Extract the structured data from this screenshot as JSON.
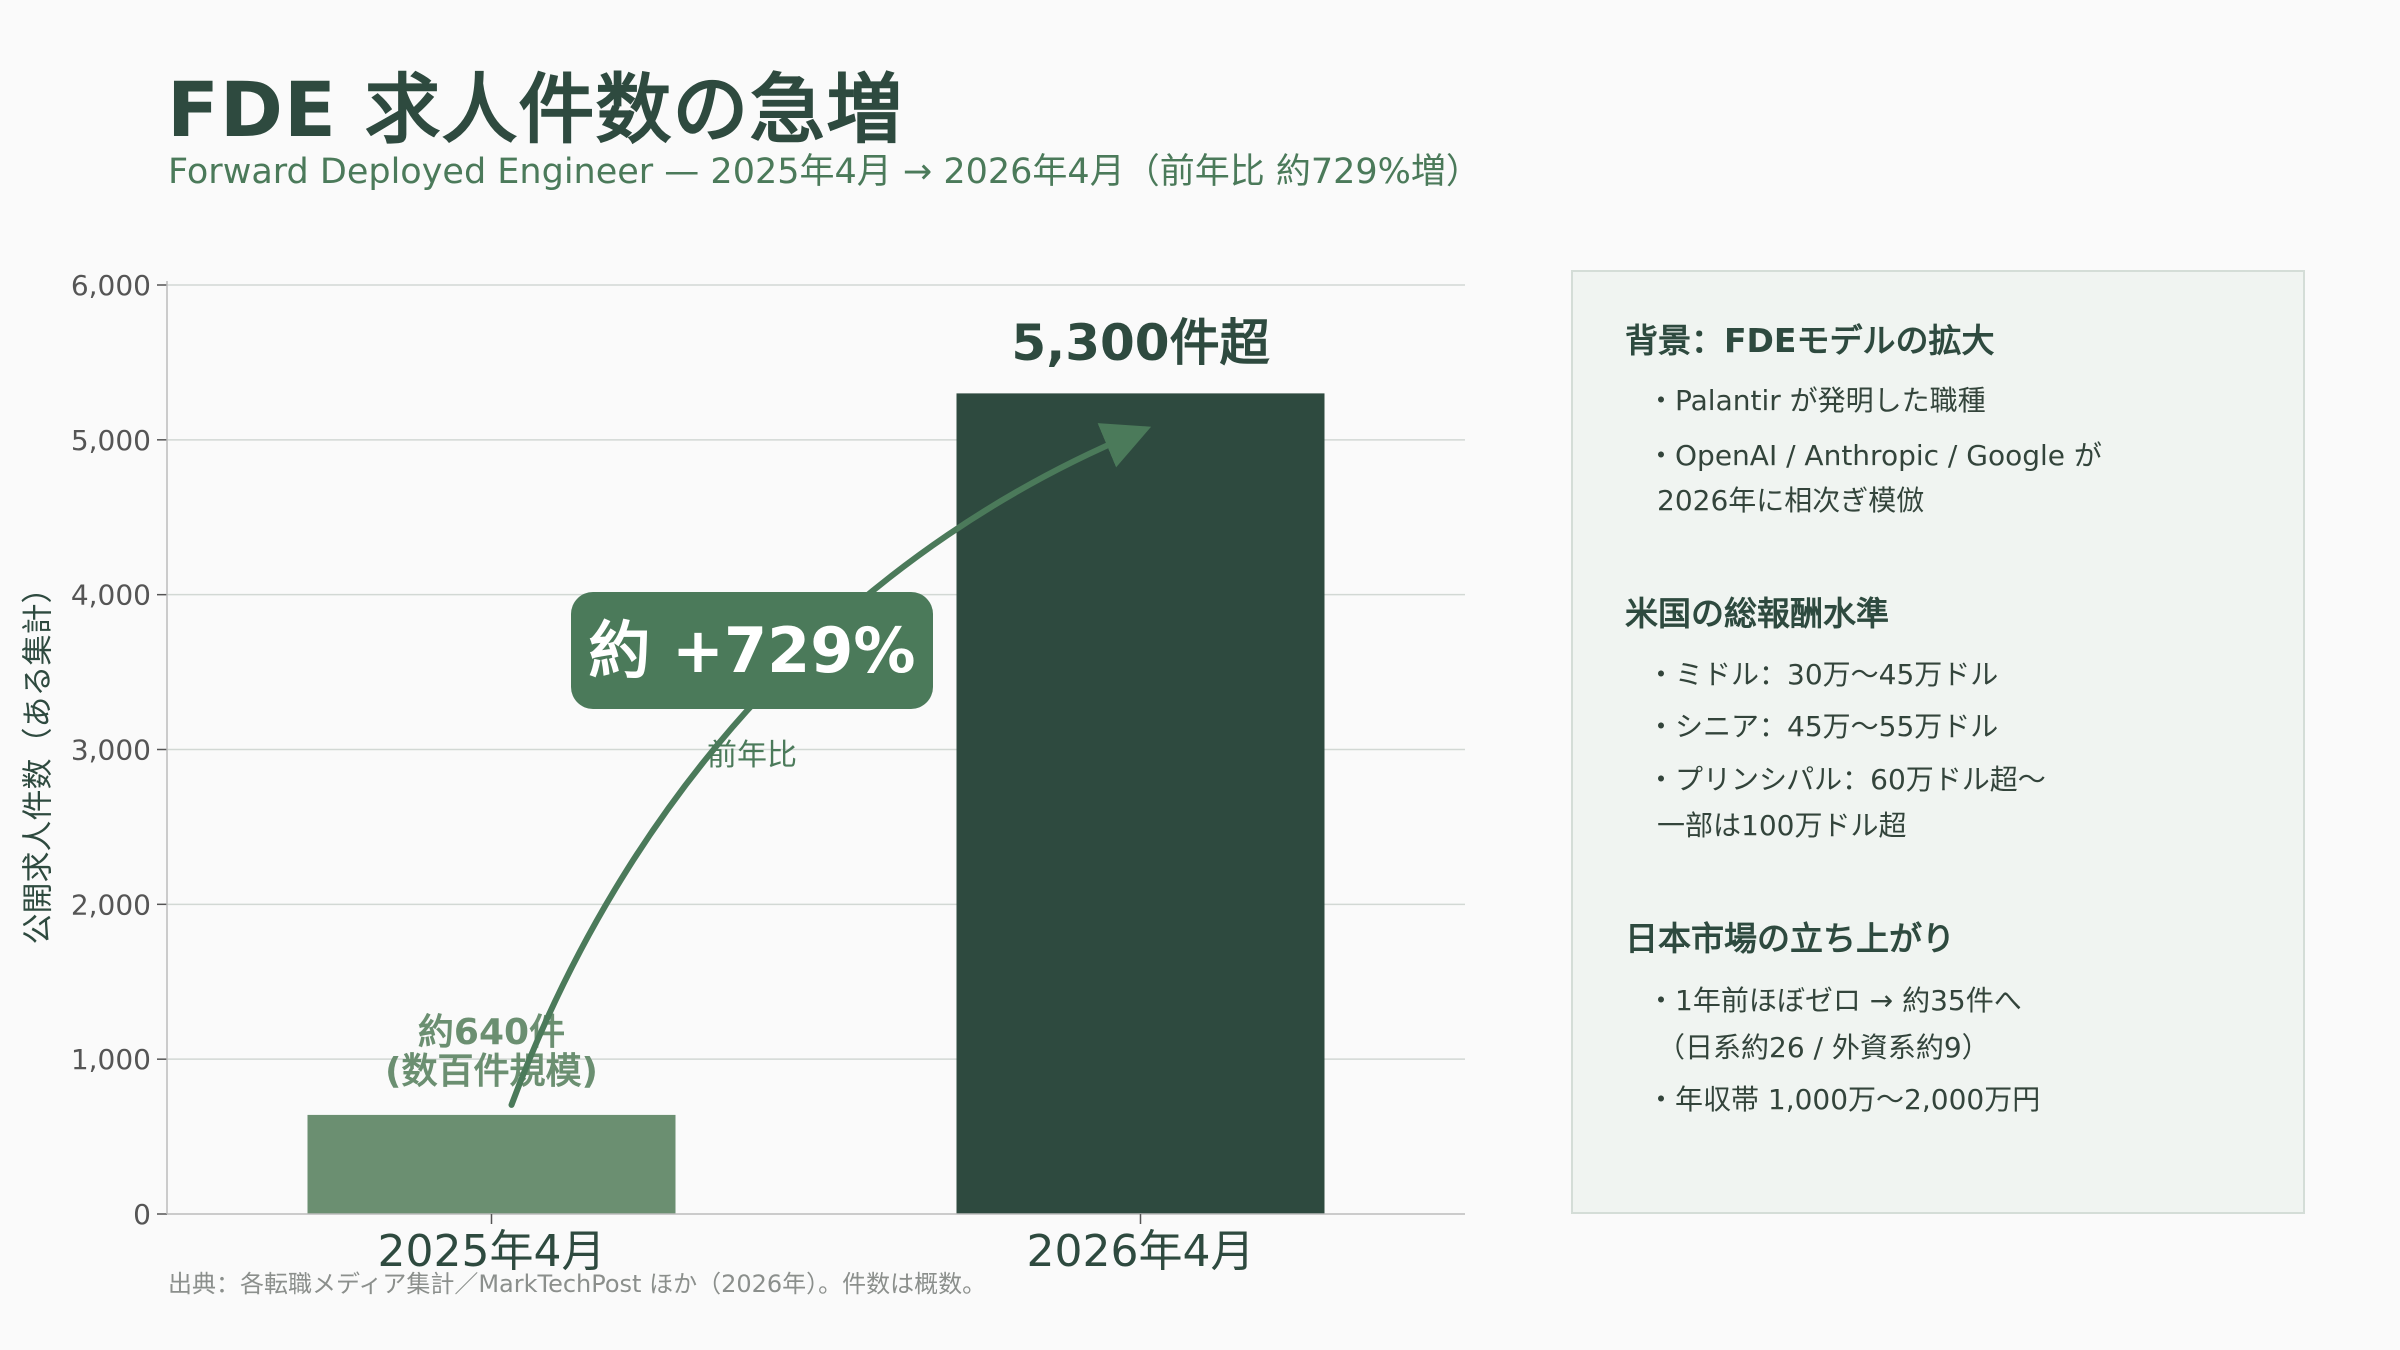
{
  "header": {
    "title": "FDE 求人件数の急増",
    "subtitle": "Forward Deployed Engineer — 2025年4月 → 2026年4月（前年比 約729%増）"
  },
  "chart_data": {
    "type": "bar",
    "categories": [
      "2025年4月",
      "2026年4月"
    ],
    "values": [
      640,
      5300
    ],
    "bar_colors": [
      "#6b8f71",
      "#2e4a3f"
    ],
    "ylabel": "公開求人件数（ある集計）",
    "ylim": [
      0,
      6000
    ],
    "yticks": [
      0,
      1000,
      2000,
      3000,
      4000,
      5000,
      6000
    ],
    "ytick_labels": [
      "0",
      "1,000",
      "2,000",
      "3,000",
      "4,000",
      "5,000",
      "6,000"
    ],
    "grid": true,
    "data_labels": [
      {
        "line1": "約640件",
        "line2": "(数百件規模)"
      },
      {
        "line1": "5,300件超"
      }
    ],
    "annotation": {
      "badge_text": "約 +729%",
      "caption": "前年比",
      "arrow_from_value": 640,
      "arrow_to_value": 5040
    }
  },
  "source": "出典：各転職メディア集計／MarkTechPost ほか（2026年）。件数は概数。",
  "panel": {
    "sections": [
      {
        "title": "背景：FDEモデルの拡大",
        "bullets": [
          [
            "・Palantir が発明した職種"
          ],
          [
            "・OpenAI / Anthropic / Google が",
            "2026年に相次ぎ模倣"
          ]
        ]
      },
      {
        "title": "米国の総報酬水準",
        "bullets": [
          [
            "・ミドル：30万〜45万ドル"
          ],
          [
            "・シニア：45万〜55万ドル"
          ],
          [
            "・プリンシパル：60万ドル超〜",
            "一部は100万ドル超"
          ]
        ]
      },
      {
        "title": "日本市場の立ち上がり",
        "bullets": [
          [
            "・1年前ほぼゼロ → 約35件へ",
            "（日系約26 / 外資系約9）"
          ],
          [
            "・年収帯 1,000万〜2,000万円"
          ]
        ]
      }
    ]
  },
  "colors": {
    "primary_dark": "#2e4a3f",
    "accent_green": "#4b7a5a",
    "bar_light": "#6b8f71",
    "grid": "#d2d8d4",
    "panel_bg": "#f0f4f1"
  }
}
